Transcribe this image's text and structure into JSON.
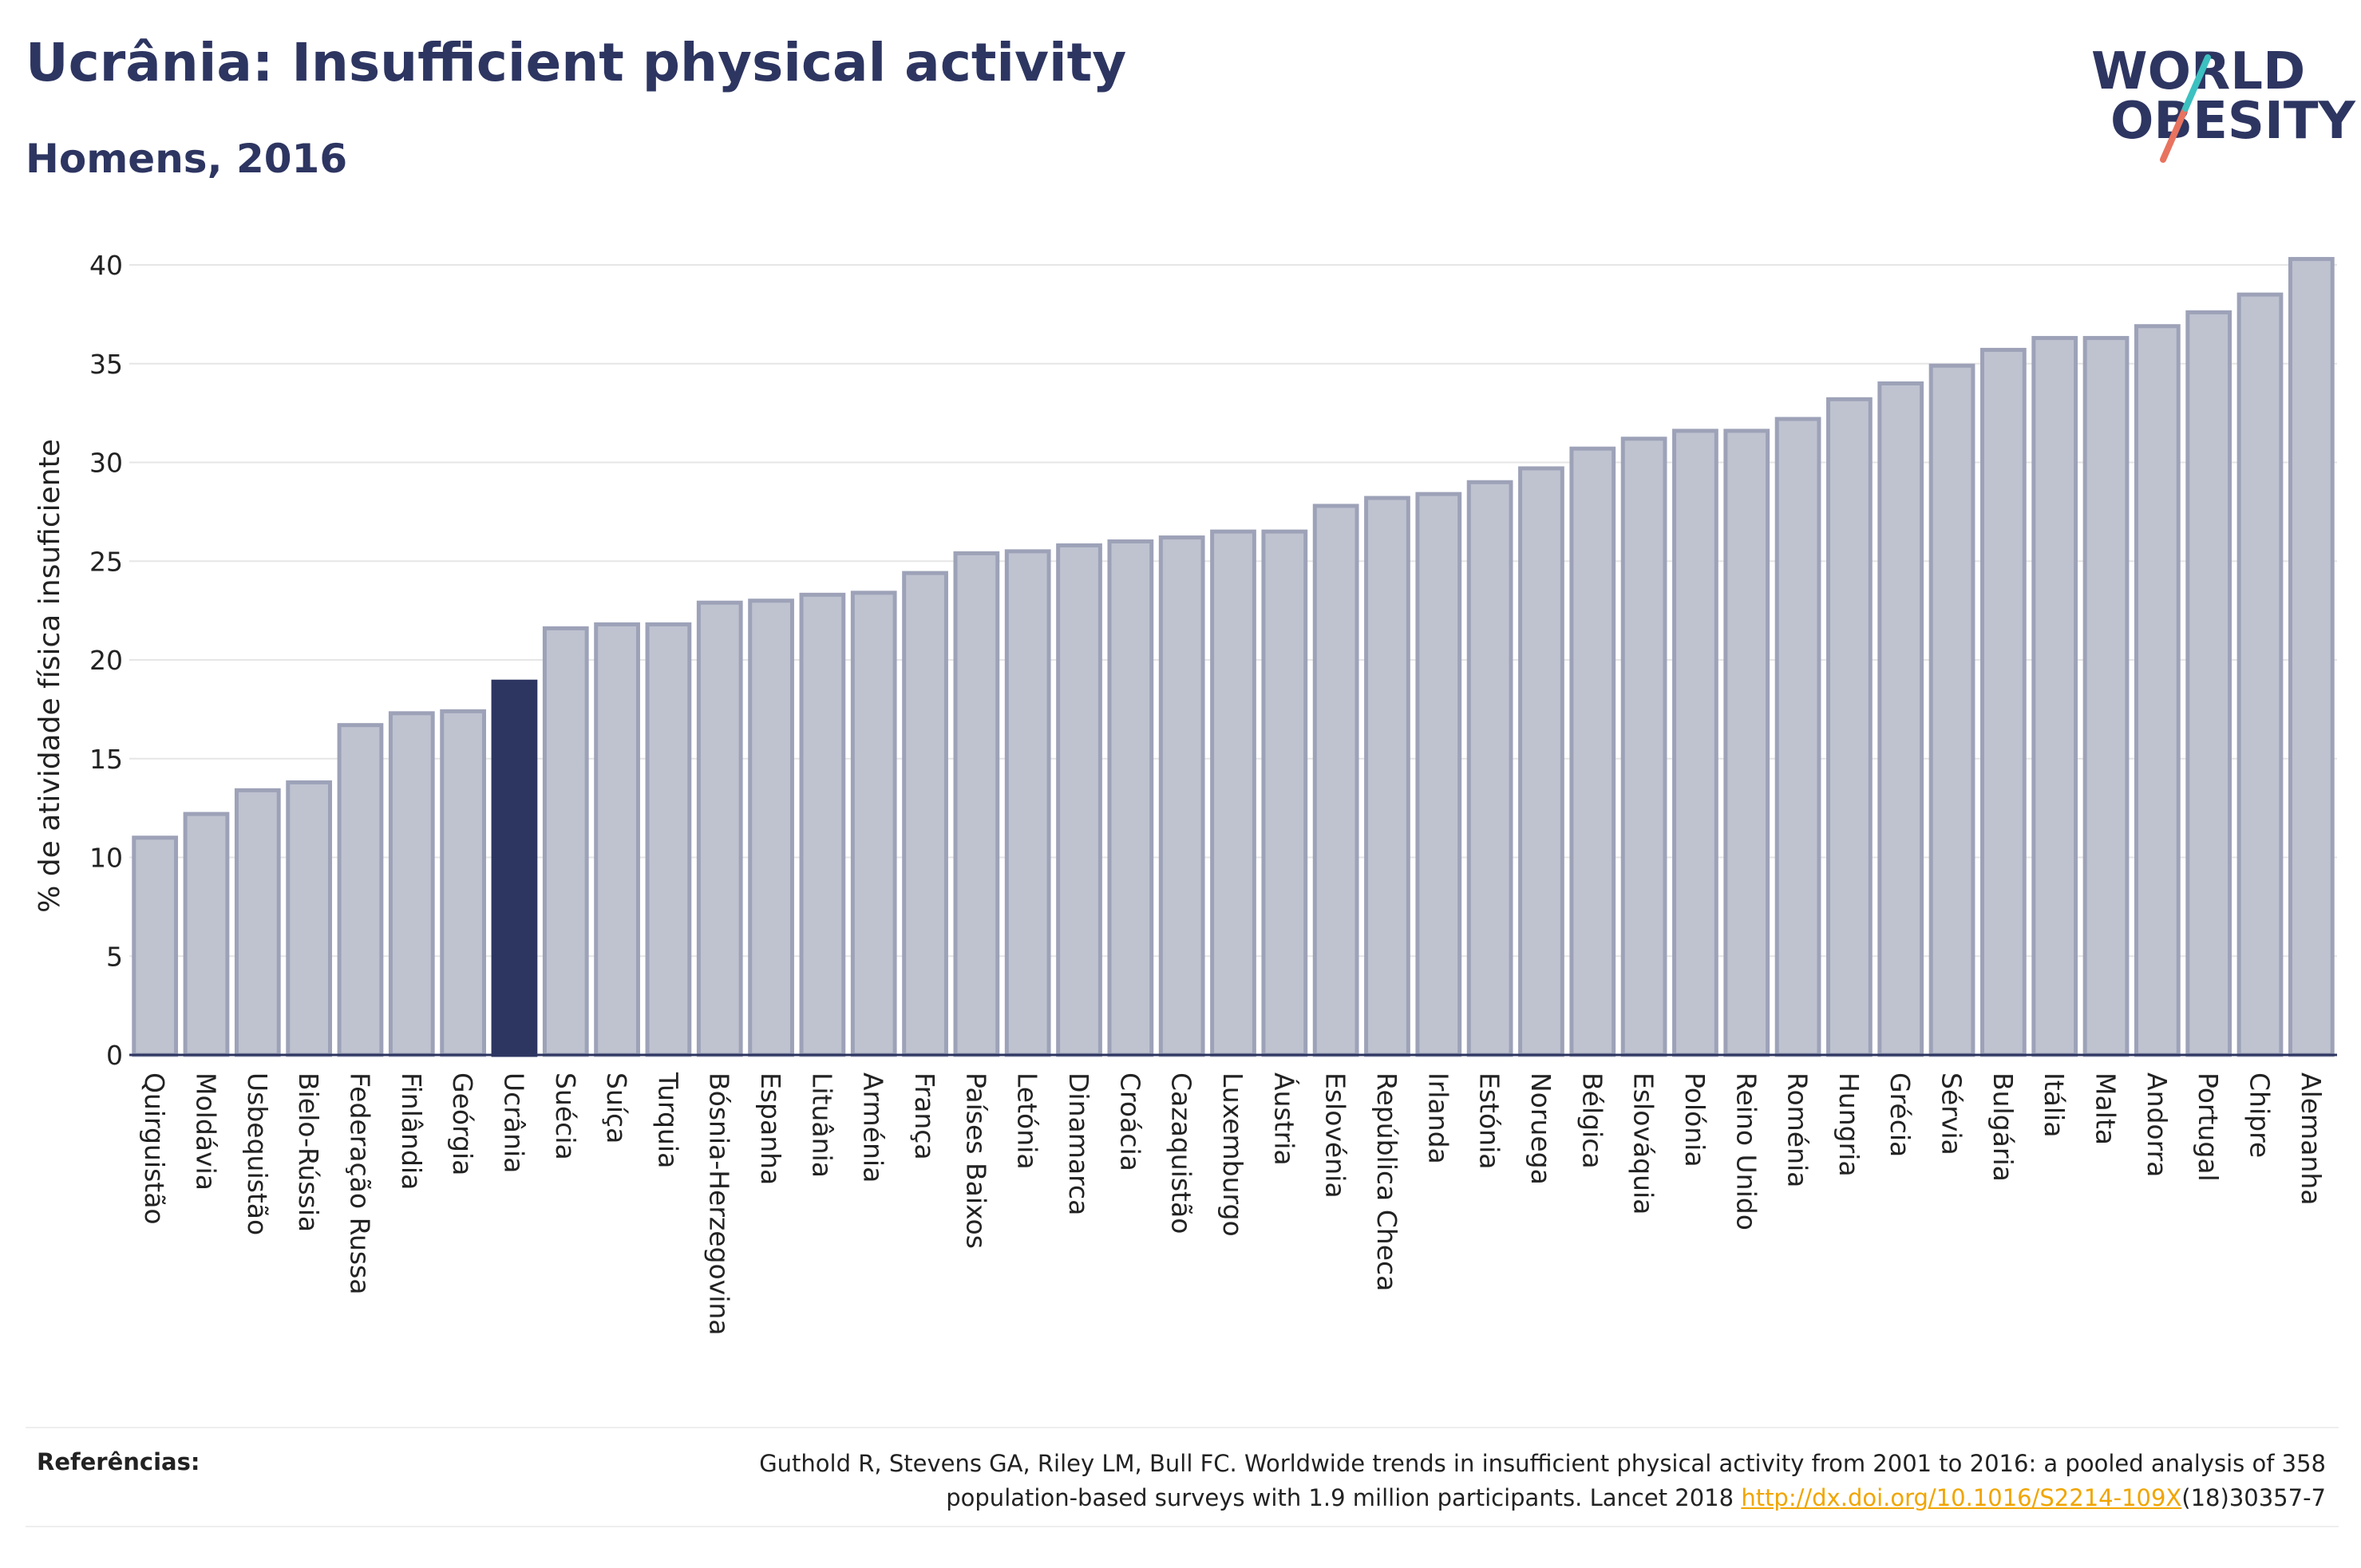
{
  "header": {
    "title": "Ucrânia: Insufficient physical activity",
    "subtitle": "Homens, 2016"
  },
  "logo": {
    "line1": "WORLD",
    "line2": "OBESITY"
  },
  "chart_data": {
    "type": "bar",
    "ylabel": "% de atividade física insuficiente",
    "ylim": [
      0,
      40
    ],
    "yticks": [
      0,
      5,
      10,
      15,
      20,
      25,
      30,
      35,
      40
    ],
    "grid": true,
    "highlight": "Ucrânia",
    "colors": {
      "bar": "#bfc3d0",
      "bar_edge": "#9da2b8",
      "highlight": "#2d3561",
      "grid": "#e6e6e6",
      "axis": "#2d3561"
    },
    "categories": [
      "Quirguistão",
      "Moldávia",
      "Usbequistão",
      "Bielo-Rússia",
      "Federação Russa",
      "Finlândia",
      "Geórgia",
      "Ucrânia",
      "Suécia",
      "Suíça",
      "Turquia",
      "Bósnia-Herzegovina",
      "Espanha",
      "Lituânia",
      "Arménia",
      "França",
      "Países Baixos",
      "Letónia",
      "Dinamarca",
      "Croácia",
      "Cazaquistão",
      "Luxemburgo",
      "Áustria",
      "Eslovénia",
      "República Checa",
      "Irlanda",
      "Estónia",
      "Noruega",
      "Bélgica",
      "Eslováquia",
      "Polónia",
      "Reino Unido",
      "Roménia",
      "Hungria",
      "Grécia",
      "Sérvia",
      "Bulgária",
      "Itália",
      "Malta",
      "Andorra",
      "Portugal",
      "Chipre",
      "Alemanha"
    ],
    "values": [
      11.0,
      12.2,
      13.4,
      13.8,
      16.7,
      17.3,
      17.4,
      18.9,
      21.6,
      21.8,
      21.8,
      22.9,
      23.0,
      23.3,
      23.4,
      24.4,
      25.4,
      25.5,
      25.8,
      26.0,
      26.2,
      26.5,
      26.5,
      27.8,
      28.2,
      28.4,
      29.0,
      29.7,
      30.7,
      31.2,
      31.6,
      31.6,
      32.2,
      33.2,
      34.0,
      34.9,
      35.7,
      36.3,
      36.3,
      36.9,
      37.6,
      38.5,
      40.3
    ]
  },
  "references": {
    "label": "Referências:",
    "text_line1": "Guthold R, Stevens GA, Riley LM, Bull FC. Worldwide trends in insufficient physical activity from 2001 to 2016: a pooled analysis of 358",
    "text_line2_prefix": "population-based surveys with 1.9 million participants. Lancet 2018 ",
    "link": "http://dx.doi.org/10.1016/S2214-109X",
    "text_line2_suffix": "(18)30357-7"
  }
}
